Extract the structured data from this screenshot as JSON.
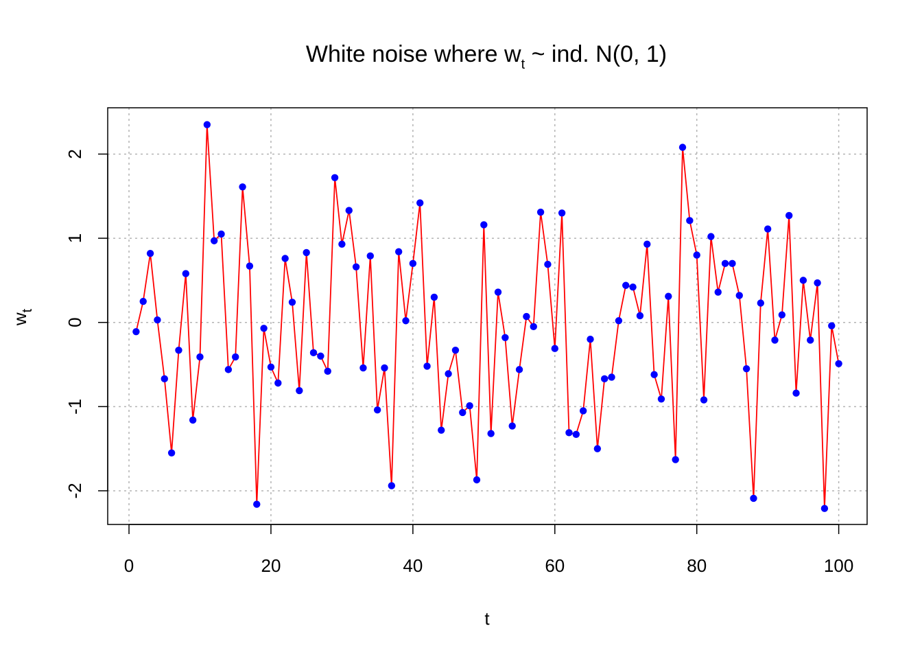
{
  "chart_data": {
    "type": "line",
    "title": {
      "prefix": "White noise where w",
      "subscript": "t",
      "suffix": " ~ ind. N(0, 1)"
    },
    "xlabel": "t",
    "ylabel": {
      "main": "w",
      "subscript": "t"
    },
    "xlim": [
      -3,
      104
    ],
    "ylim": [
      -2.4,
      2.55
    ],
    "xticks": [
      0,
      20,
      40,
      60,
      80,
      100
    ],
    "yticks": [
      -2,
      -1,
      0,
      1,
      2
    ],
    "xtick_labels": [
      "0",
      "20",
      "40",
      "60",
      "80",
      "100"
    ],
    "ytick_labels": [
      "-2",
      "-1",
      "0",
      "1",
      "2"
    ],
    "grid": true,
    "line_color": "#ff0000",
    "point_color": "#0000ff",
    "series": [
      {
        "x": [
          1,
          2,
          3,
          4,
          5,
          6,
          7,
          8,
          9,
          10,
          11,
          12,
          13,
          14,
          15,
          16,
          17,
          18,
          19,
          20,
          21,
          22,
          23,
          24,
          25,
          26,
          27,
          28,
          29,
          30,
          31,
          32,
          33,
          34,
          35,
          36,
          37,
          38,
          39,
          40,
          41,
          42,
          43,
          44,
          45,
          46,
          47,
          48,
          49,
          50,
          51,
          52,
          53,
          54,
          55,
          56,
          57,
          58,
          59,
          60,
          61,
          62,
          63,
          64,
          65,
          66,
          67,
          68,
          69,
          70,
          71,
          72,
          73,
          74,
          75,
          76,
          77,
          78,
          79,
          80,
          81,
          82,
          83,
          84,
          85,
          86,
          87,
          88,
          89,
          90,
          91,
          92,
          93,
          94,
          95,
          96,
          97,
          98,
          99,
          100
        ],
        "y": [
          -0.11,
          0.25,
          0.82,
          0.03,
          -0.67,
          -1.55,
          -0.33,
          0.58,
          -1.16,
          -0.41,
          2.35,
          0.97,
          1.05,
          -0.56,
          -0.41,
          1.61,
          0.67,
          -2.16,
          -0.07,
          -0.53,
          -0.72,
          0.76,
          0.24,
          -0.81,
          0.83,
          -0.36,
          -0.4,
          -0.58,
          1.72,
          0.93,
          1.33,
          0.66,
          -0.54,
          0.79,
          -1.04,
          -0.54,
          -1.94,
          0.84,
          0.02,
          0.7,
          1.42,
          -0.52,
          0.3,
          -1.28,
          -0.61,
          -0.33,
          -1.07,
          -0.99,
          -1.87,
          1.16,
          -1.32,
          0.36,
          -0.18,
          -1.23,
          -0.56,
          0.07,
          -0.05,
          1.31,
          0.69,
          -0.31,
          1.3,
          -1.31,
          -1.33,
          -1.05,
          -0.2,
          -1.5,
          -0.67,
          -0.65,
          0.02,
          0.44,
          0.42,
          0.08,
          0.93,
          -0.62,
          -0.91,
          0.31,
          -1.63,
          2.08,
          1.21,
          0.8,
          -0.92,
          1.02,
          0.36,
          0.7,
          0.7,
          0.32,
          -0.55,
          -2.09,
          0.23,
          1.11,
          -0.21,
          0.09,
          1.27,
          -0.84,
          0.5,
          -0.21,
          0.47,
          -2.21,
          -0.04,
          -0.49
        ]
      }
    ]
  }
}
